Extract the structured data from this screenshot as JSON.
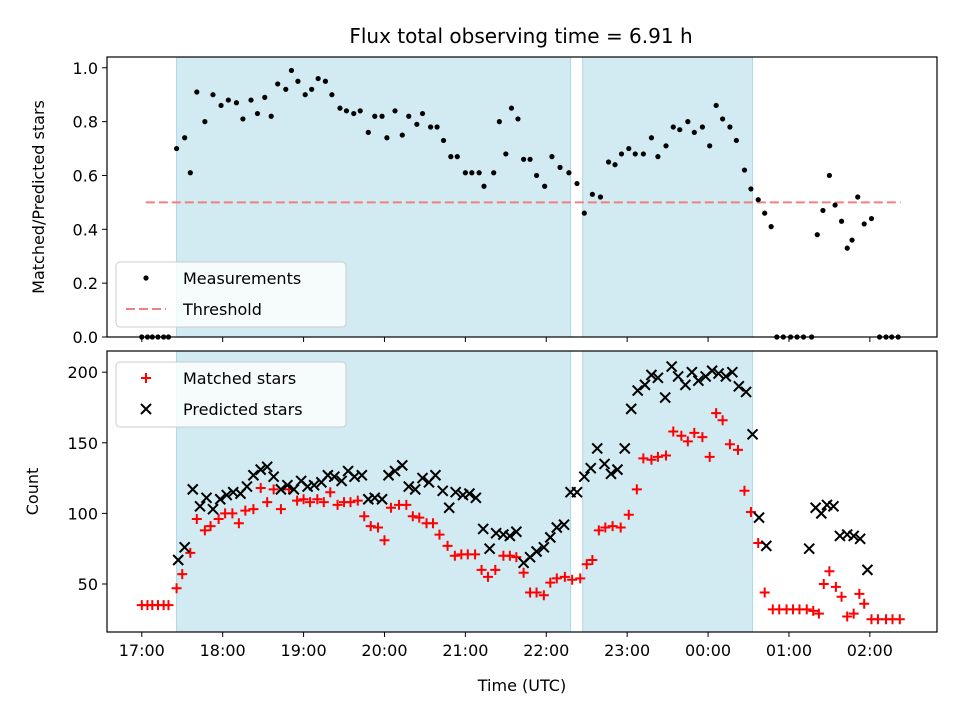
{
  "chart_data": [
    {
      "type": "scatter",
      "title": "Flux total observing time = 6.91 h",
      "xlabel": "",
      "ylabel": "Matched/Predicted stars",
      "ylim": [
        0,
        1.04
      ],
      "yticks": [
        "0.0",
        "0.2",
        "0.4",
        "0.6",
        "0.8",
        "1.0"
      ],
      "ytick_values": [
        0,
        0.2,
        0.4,
        0.6,
        0.8,
        1.0
      ],
      "xlim": [
        16.57,
        26.83
      ],
      "xticks": [
        "17:00",
        "18:00",
        "19:00",
        "20:00",
        "21:00",
        "22:00",
        "23:00",
        "00:00",
        "01:00",
        "02:00"
      ],
      "xtick_values": [
        17,
        18,
        19,
        20,
        21,
        22,
        23,
        24,
        25,
        26
      ],
      "grid": false,
      "legend": "lower-left",
      "legend_entries": [
        "Measurements",
        "Threshold"
      ],
      "shaded_intervals": [
        [
          17.43,
          22.3
        ],
        [
          22.45,
          24.55
        ]
      ],
      "shade_color": "#add8e6",
      "threshold": {
        "name": "Threshold",
        "y": 0.5,
        "x_range": [
          17.05,
          26.38
        ],
        "color": "#f08080"
      },
      "series": [
        {
          "name": "Measurements",
          "color": "#000000",
          "x": [
            17.0,
            17.07,
            17.13,
            17.2,
            17.27,
            17.33,
            17.43,
            17.53,
            17.6,
            17.68,
            17.78,
            17.88,
            17.98,
            18.07,
            18.17,
            18.25,
            18.35,
            18.43,
            18.52,
            18.6,
            18.68,
            18.78,
            18.85,
            18.93,
            19.02,
            19.1,
            19.18,
            19.27,
            19.35,
            19.45,
            19.53,
            19.62,
            19.7,
            19.8,
            19.88,
            19.97,
            20.03,
            20.13,
            20.22,
            20.3,
            20.4,
            20.47,
            20.57,
            20.65,
            20.73,
            20.82,
            20.9,
            21.0,
            21.08,
            21.17,
            21.23,
            21.35,
            21.42,
            21.5,
            21.57,
            21.65,
            21.72,
            21.8,
            21.88,
            21.98,
            22.07,
            22.17,
            22.28,
            22.38,
            22.47,
            22.57,
            22.67,
            22.77,
            22.85,
            22.93,
            23.02,
            23.1,
            23.2,
            23.3,
            23.38,
            23.48,
            23.57,
            23.65,
            23.75,
            23.83,
            23.93,
            24.02,
            24.1,
            24.18,
            24.27,
            24.35,
            24.45,
            24.53,
            24.62,
            24.7,
            24.78,
            24.85,
            24.93,
            25.02,
            25.1,
            25.18,
            25.28,
            25.35,
            25.42,
            25.5,
            25.57,
            25.65,
            25.72,
            25.78,
            25.85,
            25.93,
            26.02,
            26.12,
            26.2,
            26.27,
            26.35
          ],
          "y": [
            0.0,
            0.0,
            0.0,
            0.0,
            0.0,
            0.0,
            0.7,
            0.74,
            0.61,
            0.91,
            0.8,
            0.9,
            0.86,
            0.88,
            0.87,
            0.81,
            0.88,
            0.83,
            0.89,
            0.82,
            0.94,
            0.92,
            0.99,
            0.95,
            0.9,
            0.92,
            0.96,
            0.95,
            0.9,
            0.85,
            0.84,
            0.83,
            0.84,
            0.76,
            0.82,
            0.82,
            0.74,
            0.84,
            0.75,
            0.82,
            0.79,
            0.83,
            0.78,
            0.78,
            0.73,
            0.67,
            0.67,
            0.61,
            0.61,
            0.61,
            0.56,
            0.61,
            0.8,
            0.68,
            0.85,
            0.81,
            0.66,
            0.66,
            0.6,
            0.56,
            0.67,
            0.63,
            0.61,
            0.57,
            0.46,
            0.53,
            0.52,
            0.65,
            0.64,
            0.68,
            0.7,
            0.68,
            0.68,
            0.74,
            0.67,
            0.71,
            0.78,
            0.77,
            0.8,
            0.76,
            0.78,
            0.71,
            0.86,
            0.81,
            0.78,
            0.73,
            0.62,
            0.55,
            0.51,
            0.46,
            0.41,
            0.0,
            0.0,
            0.0,
            0.0,
            0.0,
            0.0,
            0.38,
            0.47,
            0.6,
            0.49,
            0.43,
            0.33,
            0.36,
            0.52,
            0.42,
            0.44,
            0.0,
            0.0,
            0.0,
            0.0
          ]
        }
      ]
    },
    {
      "type": "scatter",
      "title": "",
      "xlabel": "Time (UTC)",
      "ylabel": "Count",
      "ylim": [
        16,
        215
      ],
      "yticks": [
        "50",
        "100",
        "150",
        "200"
      ],
      "ytick_values": [
        50,
        100,
        150,
        200
      ],
      "xlim": [
        16.57,
        26.83
      ],
      "xticks": [
        "17:00",
        "18:00",
        "19:00",
        "20:00",
        "21:00",
        "22:00",
        "23:00",
        "00:00",
        "01:00",
        "02:00"
      ],
      "xtick_values": [
        17,
        18,
        19,
        20,
        21,
        22,
        23,
        24,
        25,
        26
      ],
      "grid": false,
      "legend": "upper-left",
      "legend_entries": [
        "Matched stars",
        "Predicted stars"
      ],
      "shaded_intervals": [
        [
          17.43,
          22.3
        ],
        [
          22.45,
          24.55
        ]
      ],
      "shade_color": "#add8e6",
      "series": [
        {
          "name": "Matched stars",
          "marker": "plus",
          "color": "#ff0000",
          "x": [
            17.0,
            17.07,
            17.13,
            17.2,
            17.27,
            17.33,
            17.43,
            17.5,
            17.6,
            17.68,
            17.78,
            17.85,
            17.95,
            18.03,
            18.12,
            18.2,
            18.28,
            18.38,
            18.47,
            18.55,
            18.63,
            18.72,
            18.82,
            18.92,
            19.0,
            19.08,
            19.17,
            19.25,
            19.33,
            19.42,
            19.5,
            19.58,
            19.67,
            19.75,
            19.83,
            19.92,
            20.0,
            20.08,
            20.18,
            20.27,
            20.35,
            20.43,
            20.52,
            20.6,
            20.68,
            20.78,
            20.87,
            20.95,
            21.03,
            21.12,
            21.2,
            21.28,
            21.37,
            21.47,
            21.55,
            21.63,
            21.72,
            21.8,
            21.88,
            21.97,
            22.05,
            22.13,
            22.23,
            22.32,
            22.42,
            22.5,
            22.57,
            22.65,
            22.73,
            22.82,
            22.92,
            23.02,
            23.12,
            23.2,
            23.3,
            23.38,
            23.48,
            23.57,
            23.67,
            23.75,
            23.83,
            23.93,
            24.02,
            24.1,
            24.18,
            24.27,
            24.37,
            24.45,
            24.53,
            24.62,
            24.7,
            24.8,
            24.88,
            24.97,
            25.05,
            25.13,
            25.22,
            25.3,
            25.37,
            25.43,
            25.5,
            25.58,
            25.65,
            25.72,
            25.8,
            25.87,
            25.93,
            26.02,
            26.1,
            26.2,
            26.28,
            26.37
          ],
          "y": [
            35,
            35,
            35,
            35,
            35,
            35,
            47,
            57,
            72,
            96,
            88,
            91,
            96,
            100,
            100,
            93,
            102,
            103,
            118,
            108,
            117,
            103,
            117,
            109,
            110,
            108,
            110,
            108,
            115,
            106,
            108,
            108,
            109,
            98,
            91,
            90,
            81,
            104,
            106,
            106,
            98,
            97,
            93,
            93,
            85,
            77,
            70,
            71,
            71,
            71,
            60,
            55,
            60,
            70,
            70,
            69,
            58,
            44,
            44,
            42,
            51,
            54,
            55,
            53,
            54,
            64,
            67,
            88,
            90,
            91,
            90,
            99,
            117,
            139,
            138,
            140,
            141,
            158,
            155,
            151,
            157,
            154,
            140,
            171,
            166,
            149,
            145,
            116,
            101,
            79,
            44,
            32,
            32,
            32,
            32,
            32,
            32,
            31,
            29,
            50,
            59,
            48,
            41,
            27,
            29,
            43,
            36,
            25,
            25,
            25,
            25,
            25
          ]
        },
        {
          "name": "Predicted stars",
          "marker": "x",
          "color": "#000000",
          "x": [
            17.45,
            17.53,
            17.63,
            17.72,
            17.8,
            17.88,
            17.97,
            18.05,
            18.13,
            18.22,
            18.3,
            18.38,
            18.47,
            18.55,
            18.63,
            18.72,
            18.8,
            18.88,
            18.97,
            19.05,
            19.13,
            19.22,
            19.3,
            19.38,
            19.47,
            19.55,
            19.63,
            19.72,
            19.8,
            19.88,
            19.97,
            20.05,
            20.13,
            20.22,
            20.3,
            20.38,
            20.47,
            20.55,
            20.63,
            20.72,
            20.8,
            20.88,
            20.97,
            21.05,
            21.13,
            21.22,
            21.3,
            21.38,
            21.47,
            21.55,
            21.63,
            21.72,
            21.8,
            21.88,
            21.97,
            22.05,
            22.13,
            22.22,
            22.3,
            22.38,
            22.47,
            22.55,
            22.63,
            22.72,
            22.8,
            22.88,
            22.97,
            23.05,
            23.13,
            23.22,
            23.3,
            23.38,
            23.47,
            23.55,
            23.63,
            23.72,
            23.8,
            23.88,
            23.97,
            24.05,
            24.13,
            24.22,
            24.3,
            24.38,
            24.47,
            24.55,
            24.63,
            24.72,
            25.25,
            25.33,
            25.4,
            25.47,
            25.55,
            25.63,
            25.72,
            25.8,
            25.88,
            25.97
          ],
          "y": [
            67,
            76,
            117,
            105,
            111,
            103,
            110,
            113,
            115,
            114,
            119,
            127,
            131,
            133,
            126,
            117,
            120,
            117,
            123,
            119,
            120,
            122,
            127,
            126,
            123,
            130,
            126,
            127,
            110,
            111,
            110,
            127,
            130,
            134,
            119,
            117,
            125,
            122,
            127,
            116,
            104,
            115,
            113,
            114,
            111,
            89,
            75,
            86,
            85,
            84,
            87,
            65,
            69,
            73,
            76,
            83,
            90,
            92,
            115,
            115,
            126,
            132,
            146,
            135,
            128,
            131,
            146,
            174,
            187,
            191,
            198,
            196,
            182,
            204,
            197,
            191,
            200,
            194,
            197,
            201,
            199,
            197,
            200,
            190,
            186,
            156,
            97,
            77,
            75,
            104,
            100,
            106,
            105,
            84,
            85,
            84,
            82,
            60
          ]
        }
      ]
    }
  ]
}
